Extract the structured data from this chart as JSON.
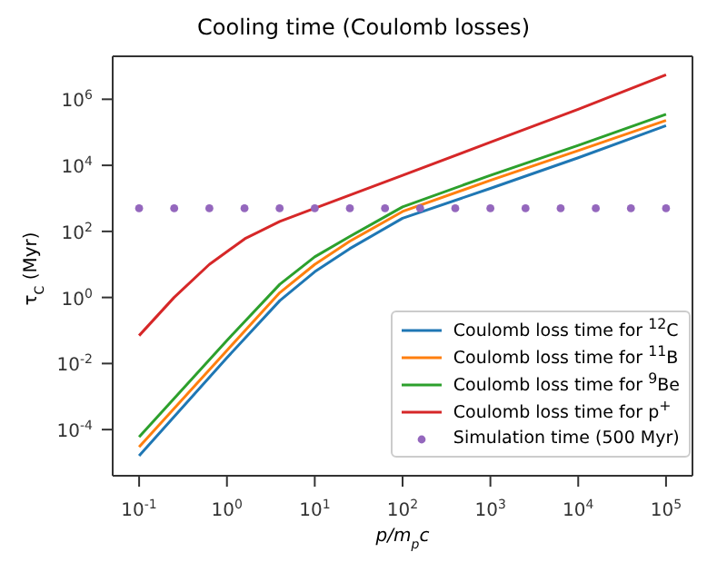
{
  "chart_data": {
    "type": "line",
    "title": "Cooling time (Coulomb losses)",
    "xlabel": "p/m$_{p}$c",
    "ylabel": "τ$_{C}$ (Myr)",
    "log": "xy",
    "grid": false,
    "legend": "bottom right",
    "marker": "none",
    "line_style": "solid",
    "xlim": [
      0.05,
      200000
    ],
    "ylim": [
      4e-06,
      20000000
    ],
    "xticks": [
      {
        "value": 0.1,
        "label": "10$^{-1}$"
      },
      {
        "value": 1,
        "label": "10$^{0}$"
      },
      {
        "value": 10,
        "label": "10$^{1}$"
      },
      {
        "value": 100,
        "label": "10$^{2}$"
      },
      {
        "value": 1000,
        "label": "10$^{3}$"
      },
      {
        "value": 10000,
        "label": "10$^{4}$"
      },
      {
        "value": 100000,
        "label": "10$^{5}$"
      }
    ],
    "yticks": [
      {
        "value": 0.0001,
        "label": "10$^{-4}$"
      },
      {
        "value": 0.01,
        "label": "10$^{-2}$"
      },
      {
        "value": 1,
        "label": "10$^{0}$"
      },
      {
        "value": 100,
        "label": "10$^{2}$"
      },
      {
        "value": 10000,
        "label": "10$^{4}$"
      },
      {
        "value": 1000000,
        "label": "10$^{6}$"
      }
    ],
    "series": [
      {
        "name": "Coulomb loss time for $^{12}$C",
        "color": "#1f77b4",
        "x": [
          0.1,
          1,
          4,
          10,
          25,
          100,
          1000,
          10000,
          100000
        ],
        "values": [
          1.6e-05,
          0.015,
          0.8,
          6,
          30,
          250,
          2000,
          17000,
          160000
        ]
      },
      {
        "name": "Coulomb loss time for $^{11}$B",
        "color": "#ff7f0e",
        "x": [
          0.1,
          1,
          4,
          10,
          25,
          100,
          1000,
          10000,
          100000
        ],
        "values": [
          3e-05,
          0.025,
          1.4,
          10,
          50,
          400,
          3500,
          28000,
          230000
        ]
      },
      {
        "name": "Coulomb loss time for $^{9}$Be",
        "color": "#2ca02c",
        "x": [
          0.1,
          1,
          4,
          10,
          25,
          100,
          1000,
          10000,
          100000
        ],
        "values": [
          6e-05,
          0.05,
          2.5,
          17,
          70,
          550,
          5000,
          40000,
          350000
        ]
      },
      {
        "name": "Coulomb loss time for p$^{+}$",
        "color": "#d62728",
        "x": [
          0.1,
          0.25,
          0.63,
          1.6,
          4,
          10,
          100,
          1000,
          10000,
          100000
        ],
        "values": [
          0.07,
          1,
          10,
          60,
          200,
          500,
          5000,
          50000,
          500000,
          5500000
        ]
      },
      {
        "name": "Simulation time (500 Myr)",
        "type": "scatter",
        "marker": "circle",
        "color": "#9467bd",
        "x": [
          0.1,
          0.251,
          0.631,
          1.585,
          3.981,
          10,
          25.12,
          63.1,
          158.5,
          398.1,
          1000,
          2512,
          6310,
          15850,
          39810,
          100000
        ],
        "values": [
          500,
          500,
          500,
          500,
          500,
          500,
          500,
          500,
          500,
          500,
          500,
          500,
          500,
          500,
          500,
          500
        ]
      }
    ]
  }
}
